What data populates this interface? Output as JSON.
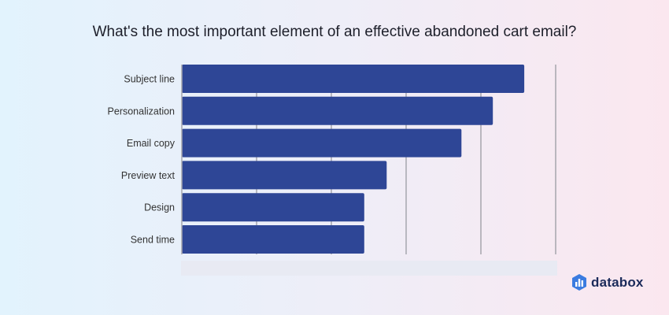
{
  "chart_data": {
    "type": "bar",
    "orientation": "horizontal",
    "title": "What's the most important element of an effective abandoned cart email?",
    "categories": [
      "Subject line",
      "Personalization",
      "Email copy",
      "Preview text",
      "Design",
      "Send time"
    ],
    "values": [
      22.9,
      20.8,
      18.7,
      13.7,
      12.2,
      12.2
    ],
    "xlim": [
      0,
      25
    ],
    "grid": true,
    "bar_color": "#2e4696",
    "gridline_color": "#a6a6ad"
  },
  "brand": {
    "name": "databox"
  }
}
